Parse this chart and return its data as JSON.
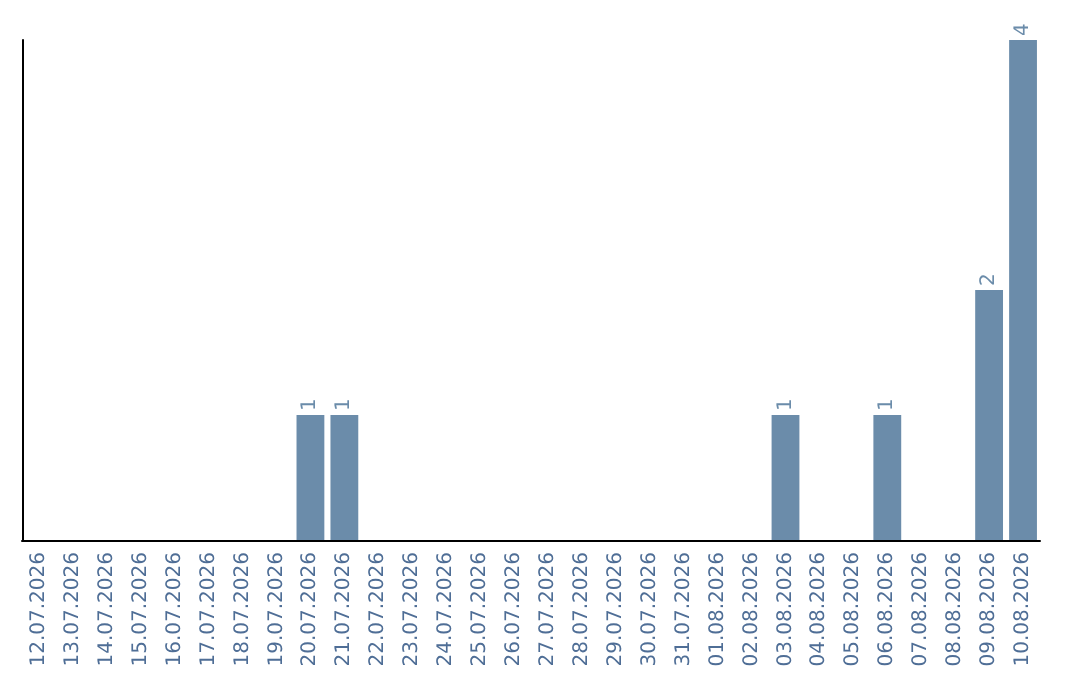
{
  "chart_data": {
    "type": "bar",
    "categories": [
      "12.07.2026",
      "13.07.2026",
      "14.07.2026",
      "15.07.2026",
      "16.07.2026",
      "17.07.2026",
      "18.07.2026",
      "19.07.2026",
      "20.07.2026",
      "21.07.2026",
      "22.07.2026",
      "23.07.2026",
      "24.07.2026",
      "25.07.2026",
      "26.07.2026",
      "27.07.2026",
      "28.07.2026",
      "29.07.2026",
      "30.07.2026",
      "31.07.2026",
      "01.08.2026",
      "02.08.2026",
      "03.08.2026",
      "04.08.2026",
      "05.08.2026",
      "06.08.2026",
      "07.08.2026",
      "08.08.2026",
      "09.08.2026",
      "10.08.2026"
    ],
    "values": [
      0,
      0,
      0,
      0,
      0,
      0,
      0,
      0,
      1,
      1,
      0,
      0,
      0,
      0,
      0,
      0,
      0,
      0,
      0,
      0,
      0,
      0,
      1,
      0,
      0,
      1,
      0,
      0,
      2,
      4
    ],
    "color": "#6b8caa",
    "value_labels": [
      null,
      null,
      null,
      null,
      null,
      null,
      null,
      null,
      "1",
      "1",
      null,
      null,
      null,
      null,
      null,
      null,
      null,
      null,
      null,
      null,
      null,
      null,
      "1",
      null,
      null,
      "1",
      null,
      null,
      "2",
      "4"
    ],
    "tick_labels": "x"
  }
}
